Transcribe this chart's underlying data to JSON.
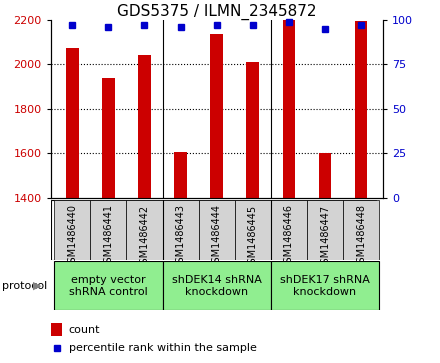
{
  "title": "GDS5375 / ILMN_2345872",
  "samples": [
    "GSM1486440",
    "GSM1486441",
    "GSM1486442",
    "GSM1486443",
    "GSM1486444",
    "GSM1486445",
    "GSM1486446",
    "GSM1486447",
    "GSM1486448"
  ],
  "counts": [
    2075,
    1940,
    2042,
    1607,
    2135,
    2012,
    2200,
    1602,
    2195
  ],
  "percentiles": [
    97,
    96,
    97,
    96,
    97,
    97,
    99,
    95,
    97
  ],
  "ylim_left": [
    1400,
    2200
  ],
  "ylim_right": [
    0,
    100
  ],
  "yticks_left": [
    1400,
    1600,
    1800,
    2000,
    2200
  ],
  "yticks_right": [
    0,
    25,
    50,
    75,
    100
  ],
  "bar_color": "#cc0000",
  "marker_color": "#0000cc",
  "groups_data": [
    {
      "label": "empty vector\nshRNA control",
      "start": 0,
      "end": 3,
      "color": "#90ee90"
    },
    {
      "label": "shDEK14 shRNA\nknockdown",
      "start": 3,
      "end": 6,
      "color": "#90ee90"
    },
    {
      "label": "shDEK17 shRNA\nknockdown",
      "start": 6,
      "end": 9,
      "color": "#90ee90"
    }
  ],
  "protocol_label": "protocol",
  "legend_count_label": "count",
  "legend_pct_label": "percentile rank within the sample",
  "bg_color": "#ffffff",
  "panel_bg": "#d3d3d3",
  "title_fontsize": 11,
  "tick_fontsize": 8,
  "sample_fontsize": 7,
  "group_fontsize": 8,
  "legend_fontsize": 8,
  "gridline_ticks": [
    1600,
    1800,
    2000
  ],
  "group_separators": [
    2.5,
    5.5
  ],
  "bar_width": 0.35
}
